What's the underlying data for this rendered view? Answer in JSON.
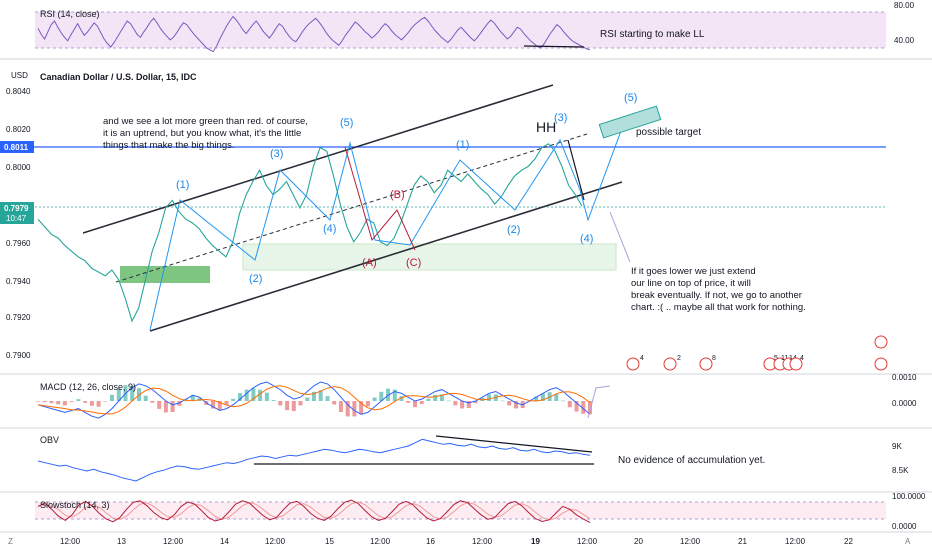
{
  "rsi": {
    "label": "RSI (14, close)",
    "scale": [
      "80.00",
      "40.00"
    ],
    "note": "RSI starting to make LL",
    "values": [
      62,
      55,
      50,
      58,
      66,
      70,
      63,
      57,
      52,
      48,
      55,
      61,
      67,
      60,
      54,
      58,
      63,
      68,
      64,
      57,
      50,
      45,
      41,
      46,
      52,
      58,
      64,
      70,
      67,
      61,
      55,
      52,
      58,
      63,
      69,
      73,
      68,
      62,
      57,
      53,
      49,
      52,
      57,
      63,
      68,
      66,
      61,
      56,
      52,
      48,
      44,
      40,
      38,
      36,
      42,
      50,
      57,
      64,
      70,
      75,
      71,
      66,
      60,
      56,
      61,
      66,
      70,
      65,
      59,
      55,
      51,
      56,
      62,
      67,
      64,
      58,
      53,
      49,
      47,
      52,
      58,
      63,
      67,
      70,
      73,
      69,
      64,
      58,
      53,
      49,
      46,
      43,
      48,
      54,
      59,
      64,
      69,
      66,
      62,
      58,
      55,
      51,
      54,
      58,
      63,
      67,
      64,
      59,
      55,
      52,
      49,
      53,
      57,
      62,
      66,
      69,
      72,
      74,
      70,
      65,
      60,
      56,
      52,
      49,
      46,
      50,
      55,
      60,
      63,
      59,
      55,
      51,
      48,
      52,
      57,
      62,
      67,
      71,
      68,
      63,
      58,
      54,
      50,
      53,
      58,
      63,
      61,
      56,
      52,
      48,
      45,
      42,
      40,
      44,
      50,
      56,
      61,
      66,
      63,
      58,
      54,
      50,
      47,
      45,
      43,
      41,
      39,
      38
    ]
  },
  "price": {
    "currency": "USD",
    "title": "Canadian Dollar / U.S. Dollar, 15, IDC",
    "scale_labels": [
      "0.8040",
      "0.8020",
      "0.8000",
      "0.7960",
      "0.7940",
      "0.7920",
      "0.7900"
    ],
    "badge_level": "0.8011",
    "badge_last": "0.7979",
    "badge_countdown": "10:47"
  },
  "chart_data": {
    "type": "line",
    "title": "Canadian Dollar / U.S. Dollar, 15, IDC",
    "xlabel": "",
    "ylabel": "",
    "ylim": [
      0.7895,
      0.805
    ],
    "x_ticks": [
      "12:00",
      "13",
      "12:00",
      "14",
      "12:00",
      "15",
      "12:00",
      "16",
      "12:00",
      "19",
      "12:00",
      "20",
      "12:00",
      "21",
      "12:00",
      "22"
    ],
    "series": [
      {
        "values": [
          0.7972,
          0.7968,
          0.7964,
          0.7962,
          0.7958,
          0.7955,
          0.7952,
          0.795,
          0.7946,
          0.7944,
          0.7942,
          0.7945,
          0.794,
          0.793,
          0.7918,
          0.7925,
          0.794,
          0.7955,
          0.7965,
          0.7978,
          0.7982,
          0.7976,
          0.7972,
          0.797,
          0.7967,
          0.7962,
          0.7958,
          0.7955,
          0.7952,
          0.796,
          0.7975,
          0.7985,
          0.7992,
          0.7998,
          0.799,
          0.7985,
          0.7988,
          0.7992,
          0.7985,
          0.7978,
          0.7985,
          0.8,
          0.801,
          0.8008,
          0.7995,
          0.798,
          0.7968,
          0.796,
          0.7965,
          0.7972,
          0.797,
          0.796,
          0.7958,
          0.7962,
          0.797,
          0.798,
          0.799,
          0.7995,
          0.7992,
          0.7986,
          0.799,
          0.7998,
          0.7995,
          0.7992,
          0.7996,
          0.7992,
          0.7988,
          0.7985,
          0.798,
          0.7984,
          0.799,
          0.7995,
          0.7998,
          0.8,
          0.8004,
          0.801,
          0.8012,
          0.8008,
          0.8,
          0.799,
          0.7985,
          0.7979
        ]
      }
    ],
    "levels": [
      {
        "value": 0.8011,
        "color": "#2962ff"
      },
      {
        "value": 0.7979,
        "color": "#26a69a"
      }
    ]
  },
  "annotations": {
    "commentary": [
      "and we see a lot more green than red. of course,",
      "it is an uptrend, but you know what, it's the little",
      "things that make the big things."
    ],
    "hh": "HH",
    "possible_target": "possible target",
    "lower_note": [
      "If it goes lower we just extend",
      "our line on top of price, it will",
      "break eventually. If not, we go to another",
      "chart. :( .. maybe all that work for nothing."
    ],
    "waves": [
      "(1)",
      "(2)",
      "(3)",
      "(4)",
      "(5)",
      "(A)",
      "(B)",
      "(C)",
      "(1)",
      "(2)",
      "(3)",
      "(4)",
      "(5)"
    ]
  },
  "events": [
    "4",
    "2",
    "8",
    "5",
    "11",
    "14",
    "4"
  ],
  "macd": {
    "label": "MACD (12, 26, close, 9)",
    "scale": [
      "0.0010",
      "0.0000"
    ],
    "values": [
      -2,
      -3,
      -4,
      -5,
      -6,
      -5,
      -4,
      -6,
      -8,
      -9,
      -7,
      -4,
      0,
      4,
      7,
      9,
      8,
      6,
      3,
      0,
      -2,
      -1,
      1,
      3,
      2,
      -1,
      -3,
      -5,
      -4,
      -2,
      1,
      4,
      7,
      9,
      10,
      8,
      6,
      3,
      1,
      2,
      5,
      8,
      10,
      9,
      6,
      2,
      -2,
      -5,
      -7,
      -6,
      -3,
      0,
      3,
      5,
      4,
      2,
      0,
      1,
      3,
      5,
      6,
      4,
      2,
      0,
      -1,
      0,
      2,
      4,
      5,
      3,
      1,
      -1,
      -2,
      0,
      2,
      4,
      6,
      7,
      5,
      2,
      -1,
      -4,
      -7
    ]
  },
  "obv": {
    "label": "OBV",
    "scale": [
      "9K",
      "8.5K"
    ],
    "note": "No evidence of accumulation yet.",
    "values": [
      50,
      48,
      46,
      44,
      45,
      42,
      40,
      38,
      40,
      37,
      35,
      33,
      30,
      28,
      26,
      30,
      34,
      37,
      39,
      42,
      44,
      43,
      41,
      40,
      42,
      44,
      46,
      48,
      47,
      49,
      52,
      54,
      56,
      55,
      53,
      55,
      57,
      56,
      58,
      60,
      62,
      64,
      63,
      61,
      60,
      62,
      64,
      63,
      61,
      60,
      62,
      64,
      66,
      68,
      72,
      76,
      74,
      72,
      70,
      71,
      69,
      68,
      70,
      67,
      66,
      68,
      65,
      64,
      66,
      63,
      62,
      64,
      61,
      60,
      62,
      61,
      59,
      60,
      58,
      57
    ]
  },
  "stoch": {
    "label": "Slowstoch (14, 3)",
    "scale": [
      "100.0000",
      "0.0000"
    ],
    "values": [
      70,
      82,
      60,
      35,
      20,
      40,
      75,
      88,
      70,
      45,
      25,
      15,
      30,
      60,
      85,
      90,
      72,
      48,
      30,
      22,
      40,
      70,
      86,
      78,
      55,
      30,
      18,
      25,
      50,
      78,
      90,
      82,
      60,
      38,
      22,
      30,
      58,
      82,
      88,
      70,
      45,
      28,
      20,
      35,
      62,
      85,
      92,
      80,
      55,
      32,
      20,
      28,
      52,
      78,
      88,
      76,
      52,
      30,
      18,
      26,
      50,
      76,
      90,
      84,
      62,
      40,
      24,
      30,
      56,
      80,
      88,
      72,
      48,
      26,
      16,
      22,
      46,
      70,
      60,
      40,
      25,
      12
    ]
  },
  "time_axis": {
    "left_icon": "Z",
    "right_icon": "A",
    "labels": [
      "12:00",
      "13",
      "12:00",
      "14",
      "12:00",
      "15",
      "12:00",
      "16",
      "12:00",
      "19",
      "12:00",
      "20",
      "12:00",
      "21",
      "12:00",
      "22"
    ]
  },
  "colors": {
    "channel": "#2a2e39",
    "wave": "#2196f3",
    "abc": "#b71c3a",
    "target_box": "#b2dfdb",
    "support_zone": "#e8f5e9",
    "green_zone": "#66bb6a",
    "rsi_band": "#f3e5f5",
    "rsi_line": "#7e57c2",
    "macd_line": "#2962ff",
    "signal_line": "#ff6d00",
    "obv_line": "#2962ff",
    "stoch_k": "#b71c3a",
    "stoch_d": "#ef9a9a",
    "level_line": "#2962ff"
  }
}
